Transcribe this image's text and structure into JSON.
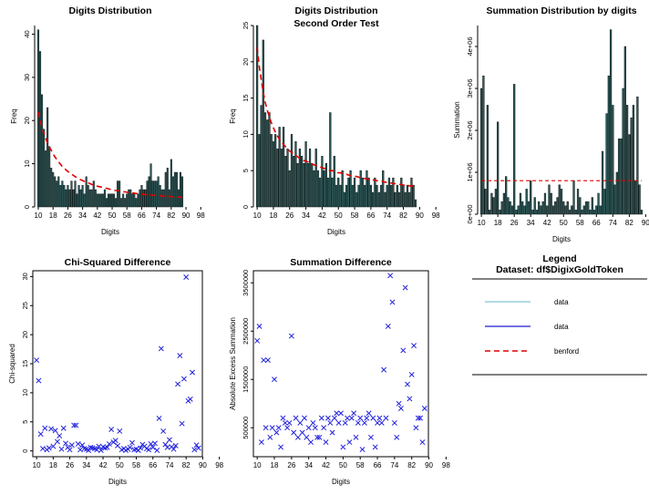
{
  "chart_data": [
    {
      "id": "p1",
      "type": "bar",
      "title": "Digits Distribution",
      "xlabel": "Digits",
      "ylabel": "Freq",
      "ylim": [
        0,
        42
      ],
      "yticks": [
        0,
        10,
        20,
        30,
        40
      ],
      "xticks": [
        10,
        18,
        26,
        34,
        42,
        50,
        58,
        66,
        74,
        82,
        90,
        98
      ],
      "x_start": 10,
      "values": [
        41,
        36,
        26,
        18,
        13,
        23,
        14,
        9,
        8,
        7,
        6,
        7,
        5,
        6,
        5,
        4,
        5,
        4,
        6,
        4,
        6,
        3,
        5,
        4,
        5,
        3,
        7,
        5,
        4,
        4,
        6,
        4,
        3,
        3,
        3,
        3,
        4,
        2,
        3,
        3,
        3,
        3,
        2,
        6,
        6,
        2,
        3,
        2,
        3,
        4,
        4,
        3,
        3,
        2,
        3,
        4,
        5,
        4,
        4,
        6,
        7,
        10,
        6,
        6,
        6,
        7,
        5,
        4,
        4,
        8,
        9,
        4,
        11,
        7,
        8,
        8,
        4,
        8,
        7
      ],
      "series": [
        {
          "name": "benford",
          "style": "dashed",
          "color": "#e00000",
          "values": [
            22.0,
            20.1,
            18.5,
            17.1,
            15.9,
            14.8,
            13.9,
            13.1,
            12.3,
            11.6,
            11.0,
            10.4,
            9.9,
            9.4,
            9.0,
            8.6,
            8.2,
            7.9,
            7.6,
            7.3,
            7.0,
            6.8,
            6.5,
            6.3,
            6.1,
            5.9,
            5.7,
            5.6,
            5.4,
            5.2,
            5.1,
            5.0,
            4.8,
            4.7,
            4.6,
            4.5,
            4.4,
            4.3,
            4.2,
            4.1,
            4.0,
            3.9,
            3.8,
            3.8,
            3.7,
            3.6,
            3.5,
            3.5,
            3.4,
            3.3,
            3.3,
            3.2,
            3.2,
            3.1,
            3.1,
            3.0,
            3.0,
            2.9,
            2.9,
            2.8,
            2.8,
            2.8,
            2.7,
            2.7,
            2.6,
            2.6,
            2.6,
            2.5,
            2.5,
            2.5,
            2.4,
            2.4,
            2.4,
            2.3,
            2.3,
            2.3,
            2.3,
            2.2,
            2.2
          ]
        }
      ]
    },
    {
      "id": "p2",
      "type": "bar",
      "title": "Digits Distribution",
      "subtitle": "Second Order Test",
      "xlabel": "Digits",
      "ylabel": "Freq",
      "ylim": [
        0,
        25
      ],
      "yticks": [
        0,
        5,
        10,
        15,
        20,
        25
      ],
      "xticks": [
        10,
        18,
        26,
        34,
        42,
        50,
        58,
        66,
        74,
        82,
        90,
        98
      ],
      "x_start": 10,
      "values": [
        25,
        10,
        14,
        23,
        13,
        12,
        13,
        10,
        9,
        10,
        8,
        11,
        8,
        11,
        7,
        8,
        5,
        10,
        7,
        9,
        6,
        8,
        7,
        6,
        9,
        6,
        8,
        6,
        5,
        8,
        5,
        4,
        7,
        5,
        6,
        4,
        13,
        4,
        7,
        3,
        4,
        3,
        5,
        2,
        3,
        4,
        5,
        3,
        4,
        2,
        3,
        5,
        4,
        3,
        5,
        4,
        3,
        2,
        4,
        3,
        2,
        3,
        5,
        2,
        3,
        4,
        3,
        4,
        2,
        3,
        2,
        4,
        3,
        2,
        3,
        2,
        4,
        3,
        1
      ],
      "series": [
        {
          "name": "benford",
          "style": "dashed",
          "color": "#e00000",
          "values": [
            22.0,
            19.5,
            17.5,
            15.8,
            14.4,
            13.3,
            12.4,
            11.6,
            10.9,
            10.3,
            9.8,
            9.3,
            8.9,
            8.6,
            8.3,
            8.0,
            7.7,
            7.5,
            7.3,
            7.1,
            6.9,
            6.7,
            6.6,
            6.4,
            6.3,
            6.2,
            6.0,
            5.9,
            5.8,
            5.7,
            5.6,
            5.5,
            5.4,
            5.3,
            5.2,
            5.1,
            5.0,
            5.0,
            4.9,
            4.8,
            4.7,
            4.7,
            4.6,
            4.5,
            4.5,
            4.4,
            4.3,
            4.3,
            4.2,
            4.2,
            4.1,
            4.0,
            4.0,
            3.9,
            3.9,
            3.8,
            3.8,
            3.7,
            3.7,
            3.6,
            3.6,
            3.5,
            3.5,
            3.4,
            3.4,
            3.3,
            3.3,
            3.2,
            3.2,
            3.2,
            3.1,
            3.1,
            3.0,
            3.0,
            3.0,
            2.9,
            2.9,
            2.9,
            2.8
          ]
        }
      ]
    },
    {
      "id": "p3",
      "type": "bar",
      "title": "Summation Distribution by digits",
      "xlabel": "Digits",
      "ylabel": "Summation",
      "ylim": [
        0,
        4500000
      ],
      "yticks": [
        0,
        1000000,
        2000000,
        3000000,
        4000000
      ],
      "ytick_labels": [
        "0e+00",
        "1e+06",
        "2e+06",
        "3e+06",
        "4e+06"
      ],
      "xticks": [
        10,
        18,
        26,
        34,
        42,
        50,
        58,
        66,
        74,
        82,
        90,
        98
      ],
      "x_start": 10,
      "values": [
        3000000,
        3300000,
        600000,
        2600000,
        100000,
        500000,
        400000,
        600000,
        2200000,
        100000,
        300000,
        500000,
        900000,
        400000,
        300000,
        200000,
        3100000,
        100000,
        200000,
        500000,
        300000,
        200000,
        600000,
        300000,
        800000,
        100000,
        400000,
        100000,
        300000,
        200000,
        300000,
        500000,
        200000,
        700000,
        500000,
        200000,
        300000,
        400000,
        700000,
        600000,
        300000,
        200000,
        300000,
        100000,
        200000,
        800000,
        100000,
        600000,
        400000,
        100000,
        200000,
        300000,
        300000,
        100000,
        400000,
        100000,
        200000,
        500000,
        200000,
        1500000,
        600000,
        2400000,
        3300000,
        4400000,
        2600000,
        700000,
        1000000,
        1800000,
        1800000,
        3000000,
        4000000,
        2600000,
        1900000,
        2300000,
        2600000,
        800000,
        2800000,
        700000,
        100000
      ],
      "series": [
        {
          "name": "benford",
          "style": "dashed",
          "color": "#e00000",
          "values": [
            800000
          ]
        }
      ]
    },
    {
      "id": "p4",
      "type": "scatter",
      "title": "Chi-Squared Difference",
      "xlabel": "Digits",
      "ylabel": "Chi-squared",
      "ylim": [
        -1,
        31
      ],
      "yticks": [
        0,
        5,
        10,
        15,
        20,
        25,
        30
      ],
      "xticks": [
        10,
        18,
        26,
        34,
        42,
        50,
        58,
        66,
        74,
        82,
        90,
        98
      ],
      "x_start": 10,
      "marker": "x",
      "values": [
        15.6,
        12.1,
        2.9,
        0.4,
        3.9,
        0.2,
        0.5,
        3.8,
        0.8,
        3.5,
        1.6,
        2.6,
        0.3,
        3.9,
        1.3,
        0.6,
        0.2,
        1.0,
        4.4,
        4.4,
        1.2,
        0.2,
        1.0,
        0.4,
        0.3,
        0.1,
        0.6,
        0.5,
        0.4,
        0.2,
        0.8,
        0.1,
        0.7,
        0.5,
        0.6,
        1.2,
        3.7,
        1.5,
        1.8,
        0.9,
        3.4,
        0.2,
        0.4,
        0.1,
        0.3,
        0.6,
        1.4,
        0.2,
        0.3,
        0.1,
        0.5,
        1.1,
        0.8,
        0.4,
        0.2,
        1.2,
        0.6,
        1.3,
        0.1,
        5.6,
        17.6,
        3.4,
        1.1,
        0.6,
        1.9,
        0.7,
        0.3,
        0.9,
        11.5,
        16.4,
        4.7,
        12.4,
        29.9,
        8.6,
        8.9,
        13.5,
        0.2,
        1.0,
        0.5
      ]
    },
    {
      "id": "p5",
      "type": "scatter",
      "title": "Summation Difference",
      "xlabel": "Digits",
      "ylabel": "Absolute Excess Summation",
      "ylim": [
        -100000,
        3750000
      ],
      "yticks": [
        500000,
        1500000,
        2500000,
        3500000
      ],
      "xticks": [
        10,
        18,
        26,
        34,
        42,
        50,
        58,
        66,
        74,
        82,
        90,
        98
      ],
      "x_start": 10,
      "marker": "x",
      "values": [
        2300000,
        2600000,
        200000,
        1900000,
        500000,
        1900000,
        300000,
        500000,
        1500000,
        400000,
        500000,
        100000,
        700000,
        600000,
        500000,
        600000,
        2400000,
        400000,
        700000,
        300000,
        600000,
        400000,
        700000,
        300000,
        500000,
        200000,
        600000,
        500000,
        300000,
        300000,
        700000,
        500000,
        200000,
        700000,
        600000,
        400000,
        700000,
        800000,
        600000,
        800000,
        100000,
        600000,
        700000,
        200000,
        700000,
        800000,
        300000,
        600000,
        700000,
        50000,
        600000,
        700000,
        800000,
        300000,
        700000,
        100000,
        600000,
        700000,
        600000,
        1700000,
        700000,
        2600000,
        3650000,
        3100000,
        600000,
        300000,
        1000000,
        900000,
        2100000,
        3400000,
        1400000,
        1100000,
        1600000,
        2200000,
        500000,
        700000,
        700000,
        200000,
        900000
      ]
    }
  ],
  "legend": {
    "title": "Legend",
    "subtitle": "Dataset: df$DigixGoldToken",
    "items": [
      {
        "label": "data",
        "color": "#7fc4d4",
        "style": "solid"
      },
      {
        "label": "data",
        "color": "#1c1ccc",
        "style": "solid"
      },
      {
        "label": "benford",
        "color": "#e00000",
        "style": "dashed"
      }
    ]
  },
  "colors": {
    "bar_fill": "#2d5a5a",
    "bar_stroke": "#0c1616",
    "point": "#2222dd",
    "axis": "#000000"
  }
}
